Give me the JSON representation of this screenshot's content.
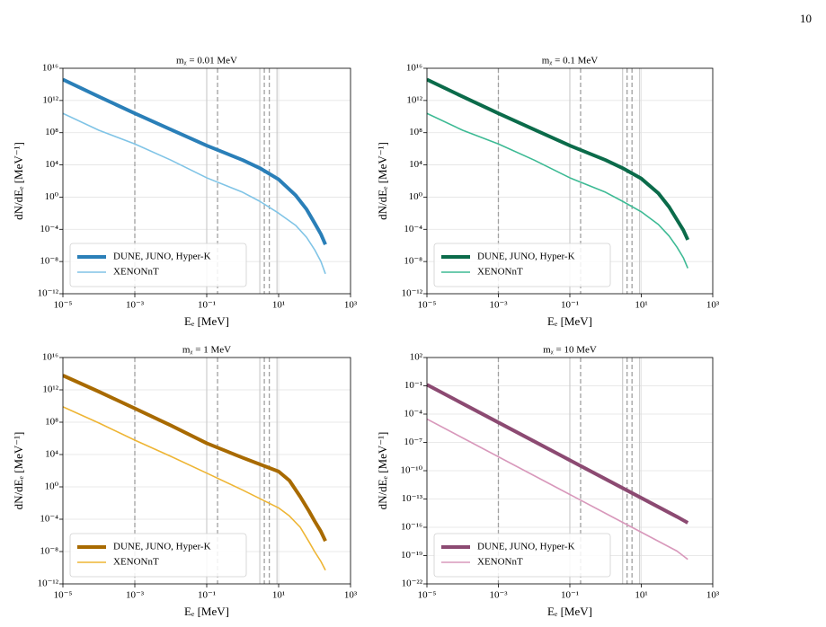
{
  "page_number": "10",
  "chart_data": [
    {
      "type": "line",
      "title": "mᵪ = 0.01 MeV",
      "xlabel": "Eₑ [MeV]",
      "ylabel": "dN/dEₑ [MeV⁻¹]",
      "xscale": "log",
      "yscale": "log",
      "grid": true,
      "legend": "lower left",
      "xlim": [
        1e-05,
        1000
      ],
      "ylim": [
        1e-12,
        1e+16
      ],
      "xticks": [
        {
          "value": 1e-05,
          "label": "10⁻⁵"
        },
        {
          "value": 0.001,
          "label": "10⁻³"
        },
        {
          "value": 0.1,
          "label": "10⁻¹"
        },
        {
          "value": 10,
          "label": "10¹"
        },
        {
          "value": 1000,
          "label": "10³"
        }
      ],
      "yticks": [
        {
          "value": 1e-12,
          "label": "10⁻¹²"
        },
        {
          "value": 1e-08,
          "label": "10⁻⁸"
        },
        {
          "value": 0.0001,
          "label": "10⁻⁴"
        },
        {
          "value": 1,
          "label": "10⁰"
        },
        {
          "value": 10000.0,
          "label": "10⁴"
        },
        {
          "value": 100000000.0,
          "label": "10⁸"
        },
        {
          "value": 1000000000000.0,
          "label": "10¹²"
        },
        {
          "value": 1e+16,
          "label": "10¹⁶"
        }
      ],
      "dashed_lines": [
        0.001,
        0.2,
        4,
        5.5
      ],
      "solid_lines": [
        0.1,
        3,
        9
      ],
      "x": [
        1e-05,
        0.0001,
        0.001,
        0.01,
        0.1,
        1,
        3,
        10,
        30,
        60,
        100,
        150,
        200
      ],
      "series": [
        {
          "name": "DUNE, JUNO, Hyper-K",
          "color": "#2a7fb8",
          "width": 4,
          "values": [
            400000000000000.0,
            3000000000000.0,
            25000000000.0,
            250000000.0,
            2500000.0,
            40000.0,
            4000.0,
            160,
            1.6,
            0.03,
            0.0006,
            2.5e-05,
            1.3e-06
          ]
        },
        {
          "name": "XENONnT",
          "color": "#80c4e6",
          "width": 1.6,
          "values": [
            25000000000.0,
            200000000.0,
            4000000.0,
            40000.0,
            250,
            4,
            0.3,
            0.01,
            0.0003,
            1e-05,
            3e-07,
            1e-08,
            3e-10
          ]
        }
      ]
    },
    {
      "type": "line",
      "title": "mᵪ = 0.1 MeV",
      "xlabel": "Eₑ [MeV]",
      "ylabel": "dN/dEₑ [MeV⁻¹]",
      "xscale": "log",
      "yscale": "log",
      "grid": true,
      "legend": "lower left",
      "xlim": [
        1e-05,
        1000
      ],
      "ylim": [
        1e-12,
        1e+16
      ],
      "xticks": [
        {
          "value": 1e-05,
          "label": "10⁻⁵"
        },
        {
          "value": 0.001,
          "label": "10⁻³"
        },
        {
          "value": 0.1,
          "label": "10⁻¹"
        },
        {
          "value": 10,
          "label": "10¹"
        },
        {
          "value": 1000,
          "label": "10³"
        }
      ],
      "yticks": [
        {
          "value": 1e-12,
          "label": "10⁻¹²"
        },
        {
          "value": 1e-08,
          "label": "10⁻⁸"
        },
        {
          "value": 0.0001,
          "label": "10⁻⁴"
        },
        {
          "value": 1,
          "label": "10⁰"
        },
        {
          "value": 10000.0,
          "label": "10⁴"
        },
        {
          "value": 100000000.0,
          "label": "10⁸"
        },
        {
          "value": 1000000000000.0,
          "label": "10¹²"
        },
        {
          "value": 1e+16,
          "label": "10¹⁶"
        }
      ],
      "dashed_lines": [
        0.001,
        0.2,
        4,
        5.5
      ],
      "solid_lines": [
        0.1,
        3,
        9
      ],
      "x": [
        1e-05,
        0.0001,
        0.001,
        0.01,
        0.1,
        1,
        3,
        10,
        30,
        60,
        100,
        150,
        200
      ],
      "series": [
        {
          "name": "DUNE, JUNO, Hyper-K",
          "color": "#0b6b4a",
          "width": 4,
          "values": [
            400000000000000.0,
            3000000000000.0,
            25000000000.0,
            250000000.0,
            2500000.0,
            40000.0,
            4000.0,
            200,
            3,
            0.06,
            0.0015,
            8e-05,
            5e-06
          ]
        },
        {
          "name": "XENONnT",
          "color": "#3dba94",
          "width": 1.6,
          "values": [
            25000000000.0,
            200000000.0,
            4000000.0,
            40000.0,
            250,
            4,
            0.3,
            0.015,
            0.0004,
            1.5e-05,
            6e-07,
            3e-08,
            1.5e-09
          ]
        }
      ]
    },
    {
      "type": "line",
      "title": "mᵪ = 1 MeV",
      "xlabel": "Eₑ [MeV]",
      "ylabel": "dN/dEₑ [MeV⁻¹]",
      "xscale": "log",
      "yscale": "log",
      "grid": true,
      "legend": "lower left",
      "xlim": [
        1e-05,
        1000
      ],
      "ylim": [
        1e-12,
        1e+16
      ],
      "xticks": [
        {
          "value": 1e-05,
          "label": "10⁻⁵"
        },
        {
          "value": 0.001,
          "label": "10⁻³"
        },
        {
          "value": 0.1,
          "label": "10⁻¹"
        },
        {
          "value": 10,
          "label": "10¹"
        },
        {
          "value": 1000,
          "label": "10³"
        }
      ],
      "yticks": [
        {
          "value": 1e-12,
          "label": "10⁻¹²"
        },
        {
          "value": 1e-08,
          "label": "10⁻⁸"
        },
        {
          "value": 0.0001,
          "label": "10⁻⁴"
        },
        {
          "value": 1,
          "label": "10⁰"
        },
        {
          "value": 10000.0,
          "label": "10⁴"
        },
        {
          "value": 100000000.0,
          "label": "10⁸"
        },
        {
          "value": 1000000000000.0,
          "label": "10¹²"
        },
        {
          "value": 1e+16,
          "label": "10¹⁶"
        }
      ],
      "dashed_lines": [
        0.001,
        0.2,
        4,
        5.5
      ],
      "solid_lines": [
        0.1,
        3,
        9
      ],
      "x": [
        1e-05,
        0.0001,
        0.001,
        0.01,
        0.1,
        1,
        10,
        20,
        40,
        70,
        100,
        150,
        200
      ],
      "series": [
        {
          "name": "DUNE, JUNO, Hyper-K",
          "color": "#a86a00",
          "width": 4,
          "values": [
            60000000000000.0,
            600000000000.0,
            5000000000.0,
            40000000.0,
            250000.0,
            4000.0,
            80,
            6,
            0.06,
            0.001,
            6e-05,
            3e-06,
            2e-07
          ]
        },
        {
          "name": "XENONnT",
          "color": "#eeb534",
          "width": 1.6,
          "values": [
            8000000000.0,
            80000000.0,
            600000.0,
            6000.0,
            50,
            0.4,
            0.0025,
            0.00025,
            1e-05,
            1.6e-07,
            1e-08,
            6e-10,
            5e-11
          ]
        }
      ]
    },
    {
      "type": "line",
      "title": "mᵪ = 10 MeV",
      "xlabel": "Eₑ [MeV]",
      "ylabel": "dN/dEₑ [MeV⁻¹]",
      "xscale": "log",
      "yscale": "log",
      "grid": true,
      "legend": "lower left",
      "xlim": [
        1e-05,
        1000
      ],
      "ylim": [
        1e-22,
        100
      ],
      "xticks": [
        {
          "value": 1e-05,
          "label": "10⁻⁵"
        },
        {
          "value": 0.001,
          "label": "10⁻³"
        },
        {
          "value": 0.1,
          "label": "10⁻¹"
        },
        {
          "value": 10,
          "label": "10¹"
        },
        {
          "value": 1000,
          "label": "10³"
        }
      ],
      "yticks": [
        {
          "value": 1e-22,
          "label": "10⁻²²"
        },
        {
          "value": 1e-19,
          "label": "10⁻¹⁹"
        },
        {
          "value": 1e-16,
          "label": "10⁻¹⁶"
        },
        {
          "value": 1e-13,
          "label": "10⁻¹³"
        },
        {
          "value": 1e-10,
          "label": "10⁻¹⁰"
        },
        {
          "value": 1e-07,
          "label": "10⁻⁷"
        },
        {
          "value": 0.0001,
          "label": "10⁻⁴"
        },
        {
          "value": 0.1,
          "label": "10⁻¹"
        },
        {
          "value": 100,
          "label": "10²"
        }
      ],
      "dashed_lines": [
        0.001,
        0.2,
        4,
        5.5
      ],
      "solid_lines": [
        0.1,
        3,
        9
      ],
      "x": [
        1e-05,
        0.0001,
        0.001,
        0.01,
        0.1,
        1,
        10,
        100,
        200
      ],
      "series": [
        {
          "name": "DUNE, JUNO, Hyper-K",
          "color": "#8c4a72",
          "width": 4,
          "values": [
            0.13,
            0.0013,
            1.3e-05,
            1.3e-07,
            1.3e-09,
            1.3e-11,
            1.3e-13,
            1.3e-15,
            3e-16
          ]
        },
        {
          "name": "XENONnT",
          "color": "#d898bb",
          "width": 1.6,
          "values": [
            3e-05,
            3e-07,
            3e-09,
            3e-11,
            3e-13,
            3e-15,
            3e-17,
            3e-19,
            4e-20
          ]
        }
      ]
    }
  ]
}
